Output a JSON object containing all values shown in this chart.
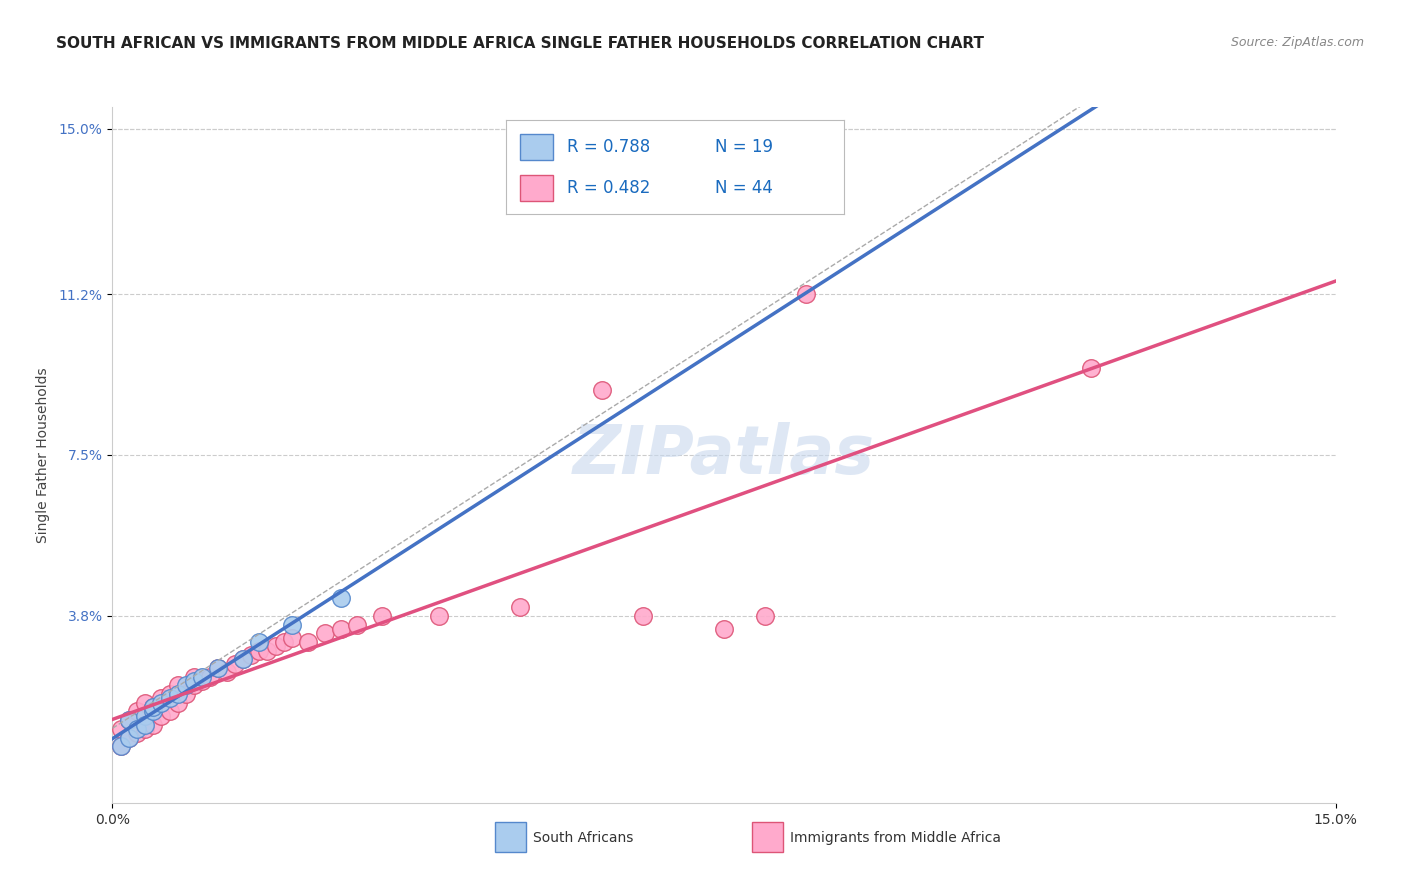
{
  "title": "SOUTH AFRICAN VS IMMIGRANTS FROM MIDDLE AFRICA SINGLE FATHER HOUSEHOLDS CORRELATION CHART",
  "source": "Source: ZipAtlas.com",
  "ylabel": "Single Father Households",
  "xlim": [
    0.0,
    0.15
  ],
  "ylim": [
    -0.005,
    0.155
  ],
  "x_ticks": [
    0.0,
    0.15
  ],
  "x_tick_labels": [
    "0.0%",
    "15.0%"
  ],
  "y_tick_positions": [
    0.038,
    0.075,
    0.112,
    0.15
  ],
  "y_tick_labels": [
    "3.8%",
    "7.5%",
    "11.2%",
    "15.0%"
  ],
  "grid_color": "#cccccc",
  "background_color": "#ffffff",
  "south_african": {
    "color": "#aaccee",
    "edge_color": "#5588cc",
    "x": [
      0.001,
      0.002,
      0.002,
      0.003,
      0.004,
      0.004,
      0.005,
      0.005,
      0.006,
      0.007,
      0.008,
      0.009,
      0.01,
      0.011,
      0.013,
      0.016,
      0.018,
      0.022,
      0.028
    ],
    "y": [
      0.008,
      0.01,
      0.014,
      0.012,
      0.015,
      0.013,
      0.016,
      0.017,
      0.018,
      0.019,
      0.02,
      0.022,
      0.023,
      0.024,
      0.026,
      0.028,
      0.032,
      0.036,
      0.042
    ]
  },
  "immigrants": {
    "color": "#ffaacc",
    "edge_color": "#dd5577",
    "x": [
      0.001,
      0.001,
      0.002,
      0.002,
      0.003,
      0.003,
      0.004,
      0.004,
      0.005,
      0.005,
      0.006,
      0.006,
      0.007,
      0.007,
      0.008,
      0.008,
      0.009,
      0.01,
      0.01,
      0.011,
      0.012,
      0.013,
      0.014,
      0.015,
      0.016,
      0.017,
      0.018,
      0.019,
      0.02,
      0.021,
      0.022,
      0.024,
      0.026,
      0.028,
      0.03,
      0.033,
      0.04,
      0.05,
      0.06,
      0.065,
      0.075,
      0.08,
      0.085,
      0.12
    ],
    "y": [
      0.008,
      0.012,
      0.01,
      0.014,
      0.011,
      0.016,
      0.012,
      0.018,
      0.013,
      0.017,
      0.015,
      0.019,
      0.016,
      0.02,
      0.018,
      0.022,
      0.02,
      0.022,
      0.024,
      0.023,
      0.024,
      0.026,
      0.025,
      0.027,
      0.028,
      0.029,
      0.03,
      0.03,
      0.031,
      0.032,
      0.033,
      0.032,
      0.034,
      0.035,
      0.036,
      0.038,
      0.038,
      0.04,
      0.09,
      0.038,
      0.035,
      0.038,
      0.112,
      0.095
    ]
  },
  "sa_trend_color": "#4472c4",
  "imm_trend_color": "#e05080",
  "conf_color": "#aaaaaa",
  "title_fontsize": 11,
  "source_fontsize": 9,
  "axis_label_fontsize": 10,
  "tick_fontsize": 10
}
